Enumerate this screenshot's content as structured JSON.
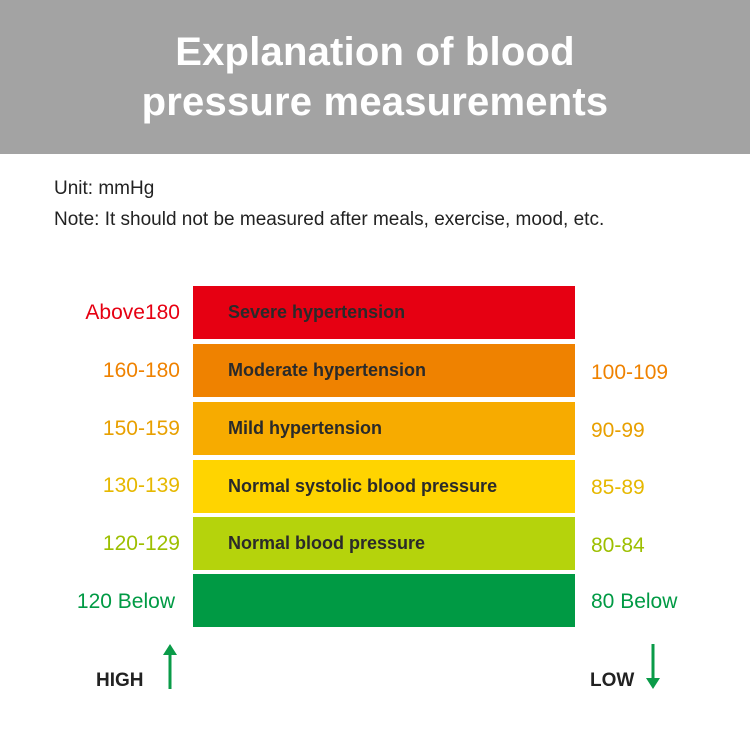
{
  "header": {
    "title": "Explanation of blood pressure measurements"
  },
  "info": {
    "unit": "Unit: mmHg",
    "note": "Note: It should not be measured after meals, exercise, mood, etc."
  },
  "colors": {
    "header_bg": "#a3a3a3",
    "arrow": "#0a9b48"
  },
  "levels": [
    {
      "label": "Severe hypertension",
      "systolic": "Above180",
      "diastolic": "",
      "band_color": "#e60012",
      "text_color": "#e60012"
    },
    {
      "label": "Moderate hypertension",
      "systolic": "160-180",
      "diastolic": "100-109",
      "band_color": "#ef8200",
      "text_color": "#ef8200"
    },
    {
      "label": "Mild hypertension",
      "systolic": "150-159",
      "diastolic": "90-99",
      "band_color": "#f7ab00",
      "text_color": "#e8a000"
    },
    {
      "label": "Normal systolic blood pressure",
      "systolic": "130-139",
      "diastolic": "85-89",
      "band_color": "#ffd400",
      "text_color": "#e6b800"
    },
    {
      "label": "Normal blood pressure",
      "systolic": "120-129",
      "diastolic": "80-84",
      "band_color": "#b5d30c",
      "text_color": "#9dbf00"
    },
    {
      "label": "",
      "systolic": "120 Below",
      "diastolic": "80 Below",
      "band_color": "#009a44",
      "text_color": "#009a44"
    }
  ],
  "directions": {
    "high": "HIGH",
    "low": "LOW"
  }
}
